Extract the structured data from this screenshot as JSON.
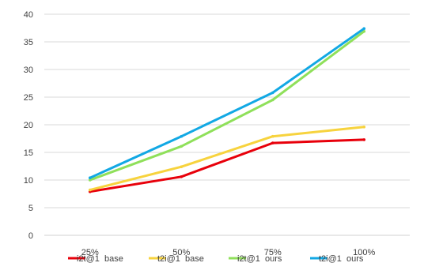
{
  "chart_data": {
    "type": "line",
    "title": "",
    "xlabel": "",
    "ylabel": "",
    "categories": [
      "25%",
      "50%",
      "75%",
      "100%"
    ],
    "ylim": [
      0,
      40
    ],
    "yticks": [
      0,
      5,
      10,
      15,
      20,
      25,
      30,
      35,
      40
    ],
    "grid": "horizontal",
    "legend_position": "bottom",
    "series": [
      {
        "name": "i2t@1  base",
        "color": "#e8000b",
        "values": [
          7.9,
          10.6,
          16.7,
          17.3
        ]
      },
      {
        "name": "t2i@1  base",
        "color": "#f7d33e",
        "values": [
          8.2,
          12.4,
          17.9,
          19.6
        ]
      },
      {
        "name": "i2t@1  ours",
        "color": "#8fe05a",
        "values": [
          10.0,
          16.1,
          24.5,
          36.9
        ]
      },
      {
        "name": "t2i@1  ours",
        "color": "#12a8e4",
        "values": [
          10.4,
          17.9,
          25.8,
          37.4
        ]
      }
    ]
  }
}
